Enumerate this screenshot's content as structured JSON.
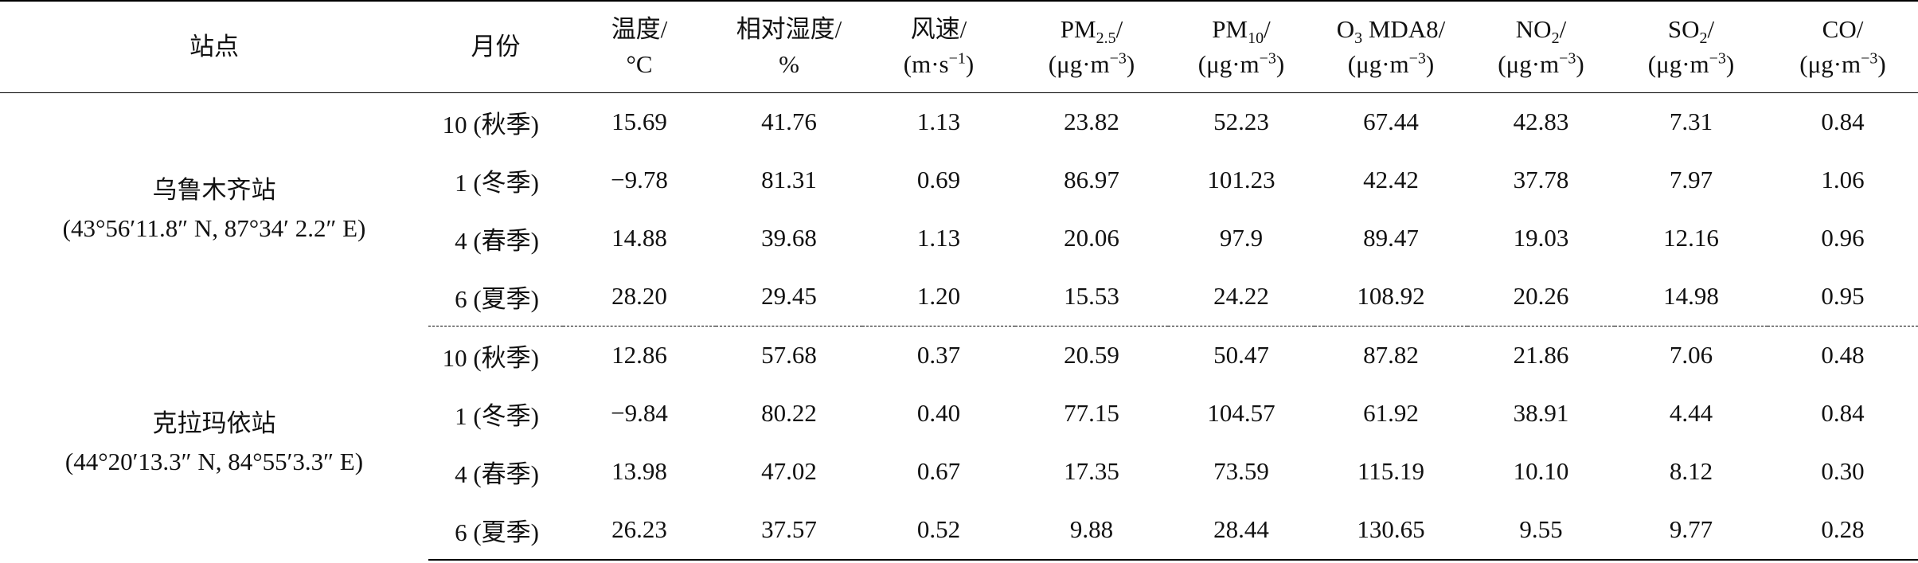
{
  "header": {
    "site": "站点",
    "month": "月份",
    "columns": [
      [
        "温度/",
        "°C"
      ],
      [
        "相对湿度/",
        "%"
      ],
      [
        "风速/",
        "(m·s",
        "−1",
        ")"
      ],
      [
        "PM",
        "2.5",
        "/",
        "(μg·m",
        "−3",
        ")"
      ],
      [
        "PM",
        "10",
        "/",
        "(μg·m",
        "−3",
        ")"
      ],
      [
        "O",
        "3",
        " MDA8/",
        "(μg·m",
        "−3",
        ")"
      ],
      [
        "NO",
        "2",
        "/",
        "(μg·m",
        "−3",
        ")"
      ],
      [
        "SO",
        "2",
        "/",
        "(μg·m",
        "−3",
        ")"
      ],
      [
        "CO/",
        "(μg·m",
        "−3",
        ")"
      ]
    ]
  },
  "groups": [
    {
      "site": "乌鲁木齐站",
      "coords": "(43°56′11.8″ N, 87°34′ 2.2″ E)",
      "rows": [
        [
          "10 (秋季)",
          "15.69",
          "41.76",
          "1.13",
          "23.82",
          "52.23",
          "67.44",
          "42.83",
          "7.31",
          "0.84"
        ],
        [
          "1 (冬季)",
          "−9.78",
          "81.31",
          "0.69",
          "86.97",
          "101.23",
          "42.42",
          "37.78",
          "7.97",
          "1.06"
        ],
        [
          "4 (春季)",
          "14.88",
          "39.68",
          "1.13",
          "20.06",
          "97.9",
          "89.47",
          "19.03",
          "12.16",
          "0.96"
        ],
        [
          "6 (夏季)",
          "28.20",
          "29.45",
          "1.20",
          "15.53",
          "24.22",
          "108.92",
          "20.26",
          "14.98",
          "0.95"
        ]
      ]
    },
    {
      "site": "克拉玛依站",
      "coords": "(44°20′13.3″ N, 84°55′3.3″ E)",
      "rows": [
        [
          "10 (秋季)",
          "12.86",
          "57.68",
          "0.37",
          "20.59",
          "50.47",
          "87.82",
          "21.86",
          "7.06",
          "0.48"
        ],
        [
          "1 (冬季)",
          "−9.84",
          "80.22",
          "0.40",
          "77.15",
          "104.57",
          "61.92",
          "38.91",
          "4.44",
          "0.84"
        ],
        [
          "4 (春季)",
          "13.98",
          "47.02",
          "0.67",
          "17.35",
          "73.59",
          "115.19",
          "10.10",
          "8.12",
          "0.30"
        ],
        [
          "6 (夏季)",
          "26.23",
          "37.57",
          "0.52",
          "9.88",
          "28.44",
          "130.65",
          "9.55",
          "9.77",
          "0.28"
        ]
      ]
    }
  ]
}
